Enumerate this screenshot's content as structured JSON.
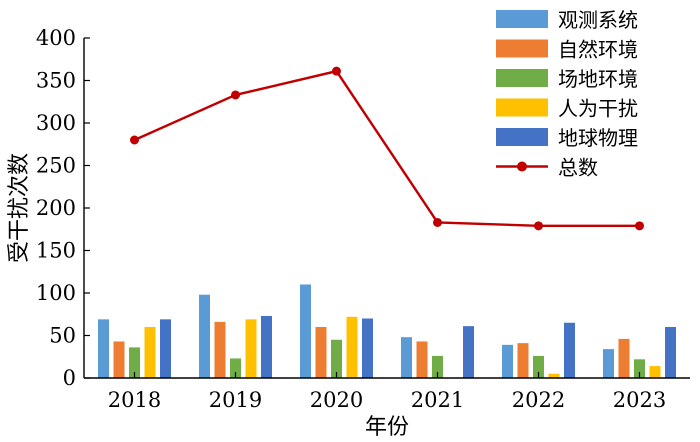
{
  "chart_data": {
    "type": "bar",
    "categories": [
      "2018",
      "2019",
      "2020",
      "2021",
      "2022",
      "2023"
    ],
    "xlabel": "年份",
    "ylabel": "受干扰次数",
    "ylim": [
      0,
      400
    ],
    "yticks": [
      0,
      50,
      100,
      150,
      200,
      250,
      300,
      350,
      400
    ],
    "grid": false,
    "legend_position": "top-right",
    "series": [
      {
        "name": "观测系统",
        "type": "bar",
        "color": "#5b9bd5",
        "values": [
          69,
          98,
          110,
          48,
          39,
          34
        ]
      },
      {
        "name": "自然环境",
        "type": "bar",
        "color": "#ed7d31",
        "values": [
          43,
          66,
          60,
          43,
          41,
          46
        ]
      },
      {
        "name": "场地环境",
        "type": "bar",
        "color": "#70ad47",
        "values": [
          36,
          23,
          45,
          26,
          26,
          22
        ]
      },
      {
        "name": "人为干扰",
        "type": "bar",
        "color": "#ffc000",
        "values": [
          60,
          69,
          72,
          0,
          5,
          14
        ]
      },
      {
        "name": "地球物理",
        "type": "bar",
        "color": "#4472c4",
        "values": [
          69,
          73,
          70,
          61,
          65,
          60
        ]
      },
      {
        "name": "总数",
        "type": "line",
        "color": "#c00000",
        "values": [
          280,
          333,
          361,
          183,
          179,
          179
        ]
      }
    ]
  }
}
